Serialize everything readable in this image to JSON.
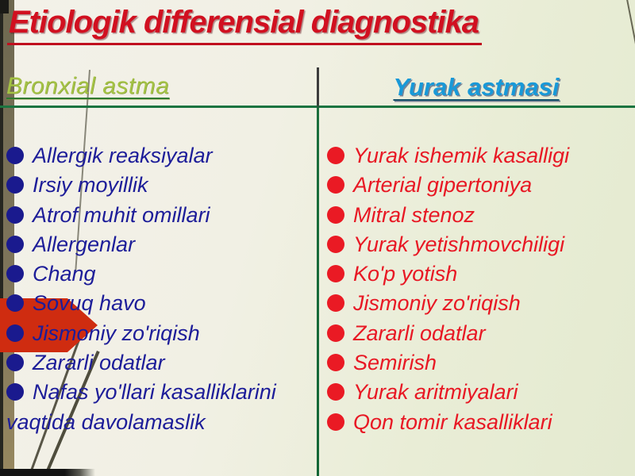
{
  "slide": {
    "title": "Etiologik differensial diagnostika",
    "left_column": {
      "header": "Bronxial astma",
      "items": [
        "Allergik reaksiyalar",
        "Irsiy moyillik",
        "Atrof muhit omillari",
        "Allergenlar",
        "Chang",
        "Sovuq havo",
        "Jismoniy zo'riqish",
        "Zararli odatlar",
        "Nafas yo'llari kasalliklarini vaqtida davolamaslik"
      ]
    },
    "right_column": {
      "header": "Yurak astmasi",
      "items": [
        "Yurak ishemik kasalligi",
        "Arterial gipertoniya",
        "Mitral stenoz",
        "Yurak yetishmovchiligi",
        "Ko'p yotish",
        "Jismoniy zo'riqish",
        "Zararli odatlar",
        "Semirish",
        "Yurak aritmiyalari",
        "Qon tomir kasalliklari"
      ]
    },
    "bullet_glyph": "●",
    "icons": {
      "pointer": "red-right-arrow-icon"
    },
    "colors": {
      "title_red": "#d11020",
      "left_header_green": "#a4c244",
      "right_header_blue": "#1899d8",
      "left_item_navy": "#1d1d99",
      "right_item_red": "#e81824",
      "divider_green": "#1b7440",
      "arrow_red": "#cf2c10",
      "background_cream": "#f1f0e4",
      "background_pale_green": "#e4ead0",
      "film_edge_olive": "#7d745a"
    }
  }
}
